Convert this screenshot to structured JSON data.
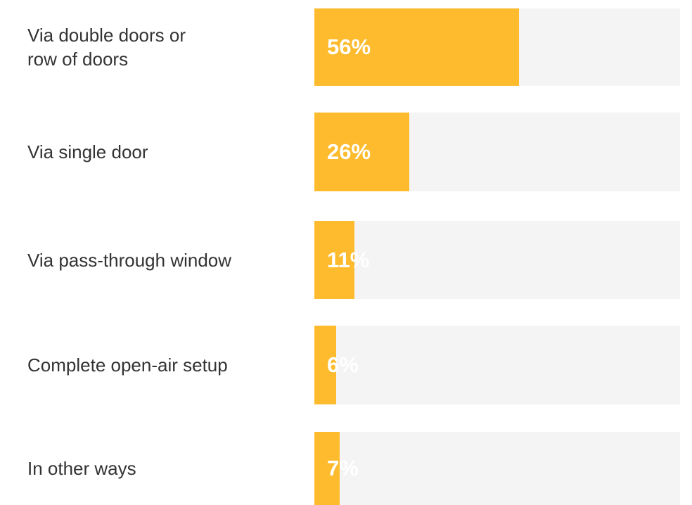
{
  "chart_data": {
    "type": "bar",
    "orientation": "horizontal",
    "categories": [
      "Via double doors or\nrow of doors",
      "Via single door",
      "Via pass-through window",
      "Complete open-air setup",
      "In other ways"
    ],
    "values": [
      56,
      26,
      11,
      6,
      7
    ],
    "value_labels": [
      "56%",
      "26%",
      "11%",
      "6%",
      "7%"
    ],
    "xlim": [
      0,
      100
    ],
    "unit": "%",
    "colors": {
      "bar": "#fdbb2d",
      "track": "#f4f4f4",
      "label_text": "#333333",
      "value_text": "#ffffff"
    },
    "grid": false,
    "legend": "none"
  }
}
